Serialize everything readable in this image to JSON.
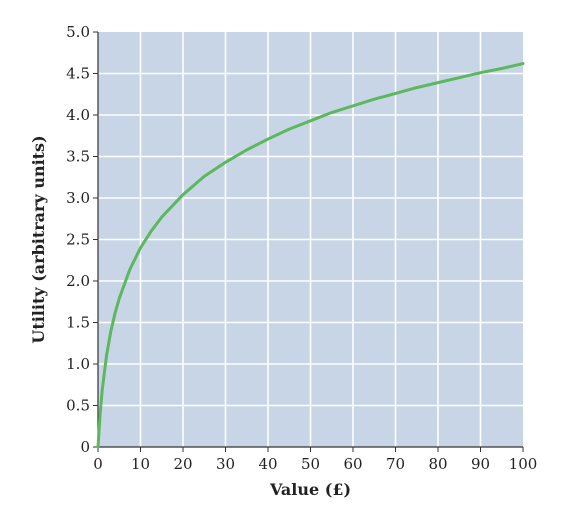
{
  "chart_data": {
    "type": "line",
    "title": "",
    "xlabel": "Value (£)",
    "ylabel": "Utility (arbitrary units)",
    "xlim": [
      0,
      100
    ],
    "ylim": [
      0,
      5.0
    ],
    "x_ticks": [
      "0",
      "10",
      "20",
      "30",
      "40",
      "50",
      "60",
      "70",
      "80",
      "90",
      "100"
    ],
    "y_ticks": [
      "0",
      "0.5",
      "1.0",
      "1.5",
      "2.0",
      "2.5",
      "3.0",
      "3.5",
      "4.0",
      "4.5",
      "5.0"
    ],
    "grid": true,
    "colors": {
      "plot_background": "#c7d5e6",
      "gridline": "#ffffff",
      "series_line": "#5cb85c"
    },
    "series": [
      {
        "x": [
          0,
          0.5,
          1,
          2,
          3,
          4,
          5,
          7.5,
          10,
          12.5,
          15,
          20,
          25,
          30,
          35,
          40,
          45,
          50,
          55,
          60,
          65,
          70,
          75,
          80,
          85,
          90,
          95,
          100
        ],
        "y": [
          0,
          0.4,
          0.69,
          1.1,
          1.39,
          1.61,
          1.79,
          2.14,
          2.4,
          2.6,
          2.77,
          3.04,
          3.26,
          3.43,
          3.58,
          3.71,
          3.83,
          3.93,
          4.03,
          4.11,
          4.19,
          4.26,
          4.33,
          4.39,
          4.45,
          4.51,
          4.56,
          4.62
        ]
      }
    ]
  }
}
